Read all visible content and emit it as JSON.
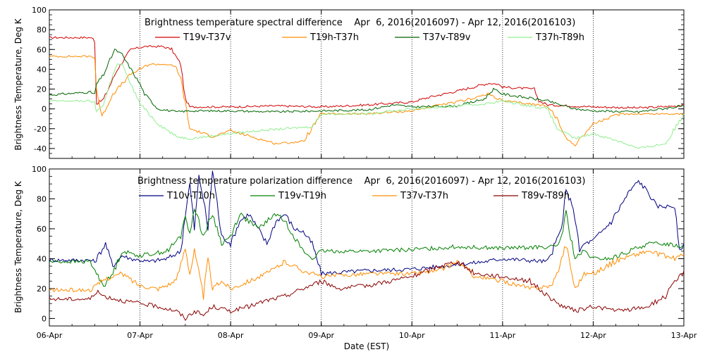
{
  "xlabel": "Date (EST)",
  "x_tick_labels": [
    "06-Apr",
    "07-Apr",
    "08-Apr",
    "09-Apr",
    "10-Apr",
    "11-Apr",
    "12-Apr",
    "13-Apr"
  ],
  "chart_data": [
    {
      "type": "line",
      "title": "Brightness temperature spectral difference    Apr  6, 2016(2016097) - Apr 12, 2016(2016103)",
      "ylabel": "Brightness Temperature, Deg K",
      "xlim": [
        0,
        7
      ],
      "ylim": [
        -50,
        100
      ],
      "yticks": [
        -40,
        -20,
        0,
        20,
        40,
        60,
        80,
        100
      ],
      "grid": "vertical dotted at day boundaries",
      "legend_placement": "top, 4 columns",
      "series": [
        {
          "name": "T19v-T37v",
          "color": "#d00000",
          "x": [
            0,
            0.45,
            0.5,
            0.52,
            0.6,
            0.75,
            0.9,
            1.05,
            1.25,
            1.35,
            1.45,
            1.5,
            1.55,
            2,
            2.5,
            3,
            3.5,
            4,
            4.2,
            4.5,
            4.85,
            4.95,
            5,
            5.35,
            5.4,
            5.5,
            6,
            6.5,
            6.95,
            7
          ],
          "y": [
            72,
            72,
            70,
            5,
            10,
            40,
            60,
            63,
            63,
            60,
            45,
            10,
            2,
            2,
            3,
            2,
            4,
            7,
            12,
            18,
            26,
            25,
            22,
            20,
            8,
            4,
            2,
            1,
            3,
            5
          ]
        },
        {
          "name": "T19h-T37h",
          "color": "#ff8c00",
          "x": [
            0,
            0.45,
            0.5,
            0.52,
            0.58,
            0.7,
            0.9,
            1.1,
            1.3,
            1.4,
            1.45,
            1.55,
            1.8,
            2,
            2.3,
            2.5,
            2.8,
            3,
            3.5,
            4,
            4.2,
            4.5,
            4.85,
            5,
            5.5,
            5.6,
            5.7,
            5.8,
            6,
            6.3,
            6.6,
            7
          ],
          "y": [
            53,
            53,
            52,
            20,
            -8,
            15,
            35,
            45,
            45,
            42,
            30,
            -20,
            -28,
            -22,
            -30,
            -35,
            -33,
            -5,
            -5,
            -2,
            2,
            7,
            15,
            8,
            3,
            -10,
            -30,
            -36,
            -15,
            -5,
            -5,
            -5
          ]
        },
        {
          "name": "T37v-T89v",
          "color": "#006400",
          "x": [
            0,
            0.3,
            0.45,
            0.5,
            0.52,
            0.6,
            0.72,
            0.8,
            0.9,
            1,
            1.05,
            1.2,
            1.4,
            1.55,
            2,
            2.5,
            3,
            3.5,
            3.8,
            4,
            4.5,
            4.8,
            4.9,
            5,
            5.5,
            5.6,
            5.8,
            6,
            6.5,
            7
          ],
          "y": [
            14,
            16,
            17,
            15,
            25,
            35,
            60,
            55,
            40,
            25,
            15,
            0,
            -3,
            -2,
            -2,
            -3,
            -2,
            -1,
            4,
            2,
            3,
            10,
            20,
            15,
            8,
            5,
            0,
            -2,
            -3,
            3
          ]
        },
        {
          "name": "T37h-T89h",
          "color": "#90ee90",
          "x": [
            0,
            0.45,
            0.5,
            0.52,
            0.6,
            0.7,
            0.75,
            0.8,
            0.9,
            1,
            1.2,
            1.4,
            1.55,
            2,
            2.3,
            2.6,
            2.9,
            3,
            3.5,
            4,
            4.5,
            4.8,
            5,
            5.5,
            5.6,
            5.8,
            6,
            6.3,
            6.5,
            6.8,
            7
          ],
          "y": [
            8,
            8,
            6,
            -3,
            5,
            35,
            45,
            45,
            25,
            5,
            -15,
            -28,
            -30,
            -25,
            -22,
            -20,
            -18,
            -5,
            -5,
            0,
            3,
            5,
            8,
            0,
            -20,
            -30,
            -25,
            -33,
            -40,
            -35,
            -5
          ]
        }
      ]
    },
    {
      "type": "line",
      "title": "Brightness temperature polarization difference    Apr  6, 2016(2016097) - Apr 12, 2016(2016103)",
      "ylabel": "Brightness Temperature, Deg K",
      "xlim": [
        0,
        7
      ],
      "ylim": [
        -5,
        100
      ],
      "yticks": [
        0,
        20,
        40,
        60,
        80,
        100
      ],
      "grid": "vertical dotted at day boundaries",
      "legend_placement": "top, 4 columns",
      "series": [
        {
          "name": "T10v-T10h",
          "color": "#000080",
          "x": [
            0,
            0.45,
            0.5,
            0.62,
            0.7,
            0.8,
            0.9,
            1.1,
            1.3,
            1.45,
            1.5,
            1.55,
            1.6,
            1.65,
            1.7,
            1.75,
            1.8,
            1.9,
            2,
            2.1,
            2.2,
            2.4,
            2.5,
            2.6,
            2.7,
            2.8,
            2.9,
            3,
            3.5,
            4,
            4.5,
            4.8,
            5,
            5.5,
            5.65,
            5.7,
            5.78,
            5.85,
            5.9,
            6,
            6.2,
            6.4,
            6.5,
            6.6,
            6.7,
            6.9,
            6.95,
            7
          ],
          "y": [
            39,
            39,
            38,
            50,
            35,
            42,
            40,
            38,
            40,
            45,
            70,
            90,
            60,
            95,
            80,
            60,
            100,
            55,
            50,
            65,
            70,
            50,
            65,
            70,
            60,
            58,
            50,
            30,
            32,
            33,
            36,
            38,
            40,
            38,
            60,
            85,
            75,
            45,
            50,
            52,
            65,
            85,
            92,
            85,
            75,
            75,
            45,
            50
          ]
        },
        {
          "name": "T19v-T19h",
          "color": "#008000",
          "x": [
            0,
            0.45,
            0.52,
            0.6,
            0.7,
            0.8,
            1,
            1.3,
            1.45,
            1.5,
            1.55,
            1.6,
            1.7,
            1.8,
            1.9,
            2,
            2.1,
            2.3,
            2.4,
            2.5,
            2.6,
            2.7,
            2.8,
            2.9,
            3,
            3.5,
            4,
            4.5,
            5,
            5.6,
            5.65,
            5.7,
            5.8,
            5.9,
            6,
            6.2,
            6.4,
            6.6,
            6.8,
            7
          ],
          "y": [
            38,
            38,
            30,
            22,
            30,
            45,
            42,
            45,
            55,
            70,
            55,
            75,
            55,
            70,
            50,
            55,
            70,
            60,
            65,
            70,
            65,
            55,
            45,
            40,
            45,
            45,
            46,
            48,
            47,
            48,
            55,
            70,
            40,
            45,
            40,
            40,
            45,
            50,
            50,
            48
          ]
        },
        {
          "name": "T37v-T37h",
          "color": "#ff8c00",
          "x": [
            0,
            0.45,
            0.52,
            0.6,
            0.8,
            1,
            1.2,
            1.4,
            1.5,
            1.55,
            1.6,
            1.7,
            1.75,
            1.8,
            1.9,
            2,
            2.2,
            2.4,
            2.6,
            2.8,
            3,
            3.5,
            4,
            4.3,
            4.5,
            4.7,
            5,
            5.3,
            5.55,
            5.6,
            5.7,
            5.8,
            5.9,
            6,
            6.3,
            6.6,
            6.9,
            7
          ],
          "y": [
            19,
            19,
            22,
            26,
            30,
            22,
            20,
            25,
            48,
            30,
            45,
            15,
            40,
            20,
            25,
            20,
            25,
            30,
            38,
            32,
            28,
            30,
            30,
            32,
            38,
            28,
            25,
            20,
            22,
            30,
            50,
            20,
            30,
            30,
            40,
            45,
            40,
            43
          ]
        },
        {
          "name": "T89v-T89h",
          "color": "#8b0000",
          "x": [
            0,
            0.45,
            0.52,
            0.6,
            0.8,
            1,
            1.2,
            1.4,
            1.5,
            1.6,
            1.7,
            1.8,
            2,
            2.2,
            2.4,
            2.6,
            2.8,
            3,
            3.2,
            3.5,
            4,
            4.3,
            4.5,
            4.7,
            5,
            5.3,
            5.5,
            5.6,
            5.8,
            6,
            6.3,
            6.6,
            6.8,
            7
          ],
          "y": [
            13,
            13,
            18,
            15,
            12,
            10,
            8,
            5,
            0,
            5,
            2,
            8,
            5,
            8,
            12,
            15,
            20,
            25,
            20,
            22,
            28,
            35,
            38,
            30,
            28,
            25,
            15,
            10,
            5,
            8,
            5,
            8,
            15,
            32
          ]
        }
      ]
    }
  ]
}
